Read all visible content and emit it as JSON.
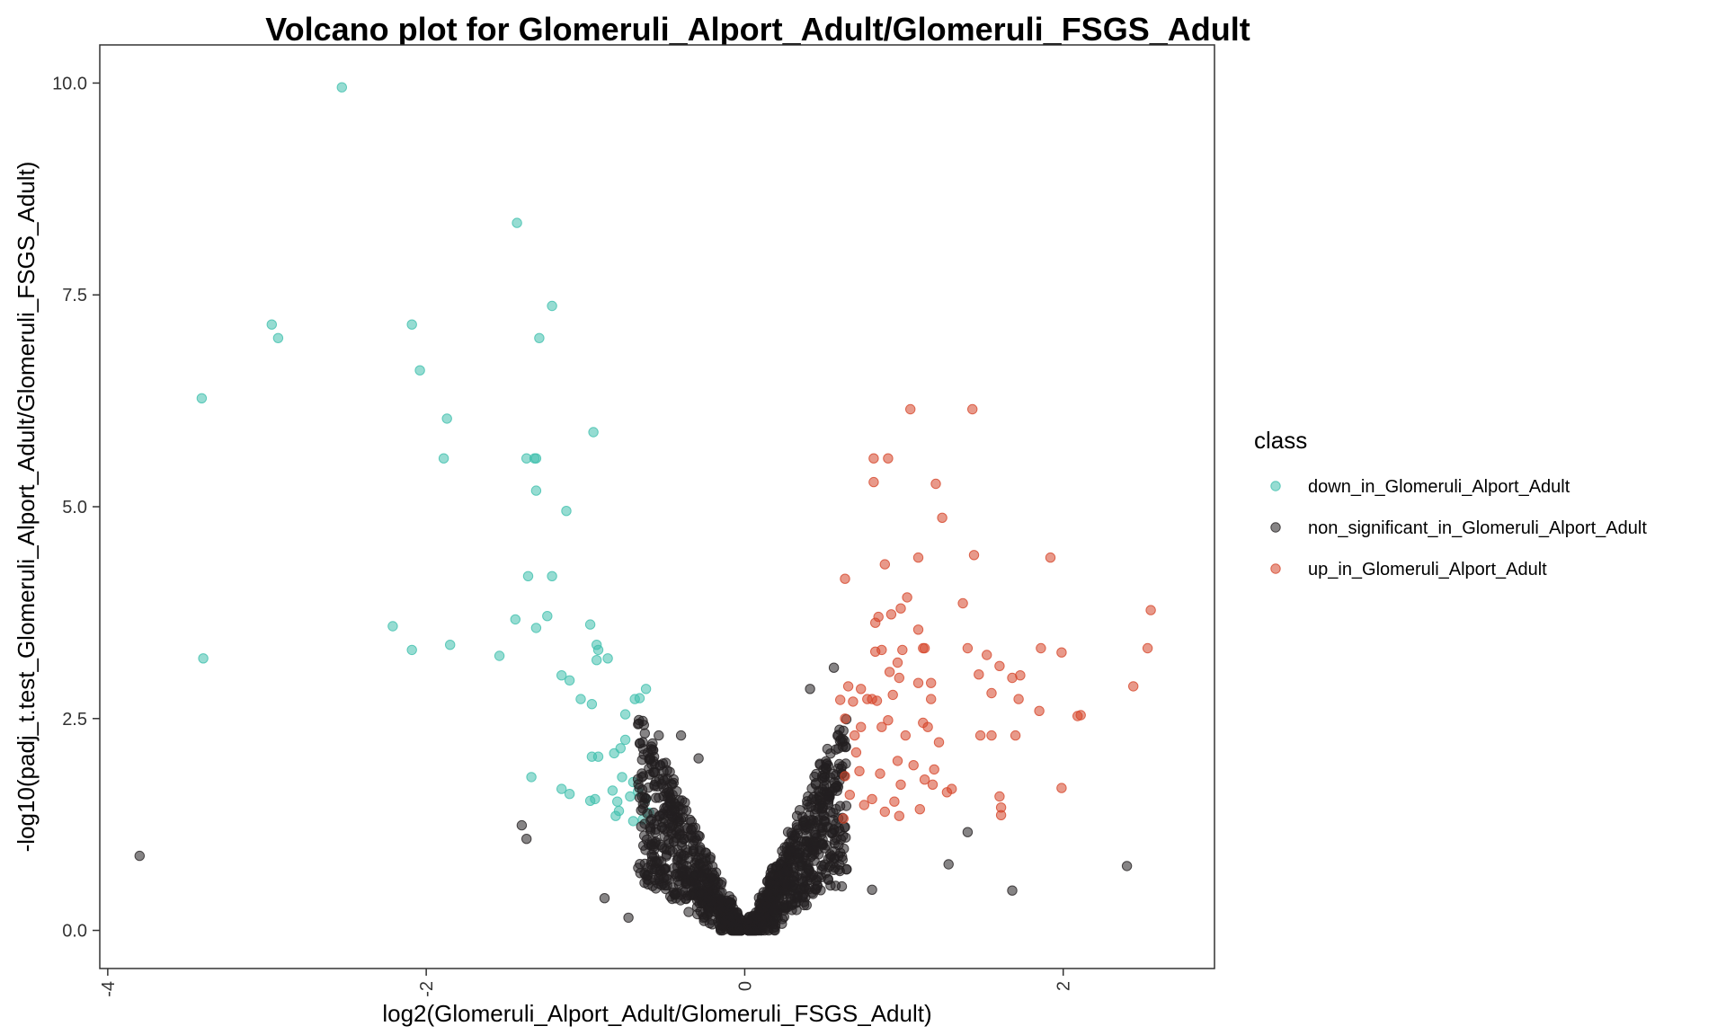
{
  "chart_data": {
    "type": "scatter",
    "title": "Volcano plot for Glomeruli_Alport_Adult/Glomeruli_FSGS_Adult",
    "xlabel": "log2(Glomeruli_Alport_Adult/Glomeruli_FSGS_Adult)",
    "ylabel": "-log10(padj_t.test_Glomeruli_Alport_Adult/Glomeruli_FSGS_Adult)",
    "xlim": [
      -4.05,
      2.95
    ],
    "ylim": [
      -0.45,
      10.45
    ],
    "x_ticks": [
      -4,
      -2,
      0,
      2
    ],
    "x_tick_labels": [
      "-4",
      "-2",
      "0",
      "2"
    ],
    "y_ticks": [
      0,
      2.5,
      5,
      7.5,
      10
    ],
    "y_tick_labels": [
      "0.0",
      "2.5",
      "5.0",
      "7.5",
      "10.0"
    ],
    "grid": false,
    "legend": {
      "title": "class",
      "position": "right",
      "entries": [
        {
          "label": "down_in_Glomeruli_Alport_Adult",
          "color": "#3fbfad"
        },
        {
          "label": "non_significant_in_Glomeruli_Alport_Adult",
          "color": "#231f20"
        },
        {
          "label": "up_in_Glomeruli_Alport_Adult",
          "color": "#d6462a"
        }
      ]
    },
    "series": [
      {
        "name": "down_in_Glomeruli_Alport_Adult",
        "color": "#3fbfad",
        "points": [
          [
            -2.53,
            9.95
          ],
          [
            -1.43,
            8.35
          ],
          [
            -1.21,
            7.37
          ],
          [
            -2.97,
            7.15
          ],
          [
            -2.93,
            6.99
          ],
          [
            -2.09,
            7.15
          ],
          [
            -1.29,
            6.99
          ],
          [
            -2.04,
            6.61
          ],
          [
            -3.41,
            6.28
          ],
          [
            -1.87,
            6.04
          ],
          [
            -0.95,
            5.88
          ],
          [
            -1.89,
            5.57
          ],
          [
            -1.37,
            5.57
          ],
          [
            -1.32,
            5.57
          ],
          [
            -1.31,
            5.57
          ],
          [
            -1.31,
            5.19
          ],
          [
            -1.12,
            4.95
          ],
          [
            -1.36,
            4.18
          ],
          [
            -1.21,
            4.18
          ],
          [
            -1.24,
            3.71
          ],
          [
            -1.44,
            3.67
          ],
          [
            -0.97,
            3.61
          ],
          [
            -2.21,
            3.59
          ],
          [
            -1.31,
            3.57
          ],
          [
            -1.85,
            3.37
          ],
          [
            -0.93,
            3.37
          ],
          [
            -0.92,
            3.31
          ],
          [
            -2.09,
            3.31
          ],
          [
            -1.54,
            3.24
          ],
          [
            -0.86,
            3.21
          ],
          [
            -0.93,
            3.19
          ],
          [
            -3.4,
            3.21
          ],
          [
            -1.15,
            3.01
          ],
          [
            -1.1,
            2.95
          ],
          [
            -0.62,
            2.85
          ],
          [
            -1.03,
            2.73
          ],
          [
            -0.96,
            2.67
          ],
          [
            -0.66,
            2.74
          ],
          [
            -0.69,
            2.73
          ],
          [
            -0.75,
            2.55
          ],
          [
            -0.75,
            2.25
          ],
          [
            -0.78,
            2.15
          ],
          [
            -0.82,
            2.09
          ],
          [
            -0.96,
            2.05
          ],
          [
            -0.92,
            2.05
          ],
          [
            -1.34,
            1.81
          ],
          [
            -0.77,
            1.81
          ],
          [
            -0.7,
            1.75
          ],
          [
            -1.15,
            1.67
          ],
          [
            -0.83,
            1.65
          ],
          [
            -0.67,
            1.64
          ],
          [
            -1.1,
            1.61
          ],
          [
            -0.72,
            1.58
          ],
          [
            -0.94,
            1.55
          ],
          [
            -0.97,
            1.53
          ],
          [
            -0.8,
            1.52
          ],
          [
            -0.62,
            1.55
          ],
          [
            -0.79,
            1.41
          ],
          [
            -0.6,
            1.39
          ],
          [
            -0.81,
            1.35
          ],
          [
            -0.7,
            1.29
          ],
          [
            -0.64,
            1.31
          ]
        ]
      },
      {
        "name": "non_significant_in_Glomeruli_Alport_Adult",
        "color": "#231f20",
        "points": []
      },
      {
        "name": "up_in_Glomeruli_Alport_Adult",
        "color": "#d6462a",
        "points": [
          [
            1.04,
            6.15
          ],
          [
            1.43,
            6.15
          ],
          [
            0.81,
            5.57
          ],
          [
            0.9,
            5.57
          ],
          [
            0.81,
            5.29
          ],
          [
            1.2,
            5.27
          ],
          [
            1.24,
            4.87
          ],
          [
            1.44,
            4.43
          ],
          [
            1.92,
            4.4
          ],
          [
            1.09,
            4.4
          ],
          [
            0.88,
            4.32
          ],
          [
            0.63,
            4.15
          ],
          [
            1.37,
            3.86
          ],
          [
            1.02,
            3.93
          ],
          [
            0.98,
            3.8
          ],
          [
            0.92,
            3.73
          ],
          [
            0.84,
            3.7
          ],
          [
            2.55,
            3.78
          ],
          [
            0.82,
            3.63
          ],
          [
            1.09,
            3.55
          ],
          [
            1.4,
            3.33
          ],
          [
            1.13,
            3.33
          ],
          [
            1.12,
            3.33
          ],
          [
            0.99,
            3.31
          ],
          [
            0.86,
            3.31
          ],
          [
            0.82,
            3.29
          ],
          [
            1.86,
            3.33
          ],
          [
            1.52,
            3.25
          ],
          [
            1.99,
            3.28
          ],
          [
            2.53,
            3.33
          ],
          [
            0.96,
            3.16
          ],
          [
            1.6,
            3.12
          ],
          [
            0.91,
            3.05
          ],
          [
            1.47,
            3.02
          ],
          [
            1.68,
            2.98
          ],
          [
            1.73,
            3.01
          ],
          [
            0.97,
            2.98
          ],
          [
            1.09,
            2.92
          ],
          [
            1.17,
            2.92
          ],
          [
            0.65,
            2.88
          ],
          [
            0.73,
            2.85
          ],
          [
            2.44,
            2.88
          ],
          [
            1.55,
            2.8
          ],
          [
            0.93,
            2.78
          ],
          [
            1.72,
            2.73
          ],
          [
            1.17,
            2.73
          ],
          [
            0.77,
            2.73
          ],
          [
            0.8,
            2.73
          ],
          [
            0.83,
            2.71
          ],
          [
            0.6,
            2.72
          ],
          [
            0.68,
            2.7
          ],
          [
            1.85,
            2.59
          ],
          [
            2.09,
            2.53
          ],
          [
            2.11,
            2.54
          ],
          [
            1.12,
            2.45
          ],
          [
            0.9,
            2.48
          ],
          [
            1.15,
            2.4
          ],
          [
            0.63,
            2.5
          ],
          [
            0.73,
            2.4
          ],
          [
            0.86,
            2.4
          ],
          [
            0.69,
            2.3
          ],
          [
            1.48,
            2.3
          ],
          [
            1.55,
            2.3
          ],
          [
            1.7,
            2.3
          ],
          [
            1.01,
            2.3
          ],
          [
            1.22,
            2.22
          ],
          [
            0.7,
            2.1
          ],
          [
            0.96,
            2.0
          ],
          [
            1.06,
            1.95
          ],
          [
            1.19,
            1.9
          ],
          [
            0.72,
            1.88
          ],
          [
            0.85,
            1.85
          ],
          [
            0.63,
            1.82
          ],
          [
            1.13,
            1.78
          ],
          [
            0.98,
            1.72
          ],
          [
            1.18,
            1.72
          ],
          [
            1.99,
            1.68
          ],
          [
            1.3,
            1.67
          ],
          [
            1.27,
            1.63
          ],
          [
            1.6,
            1.58
          ],
          [
            0.8,
            1.55
          ],
          [
            0.66,
            1.6
          ],
          [
            0.94,
            1.52
          ],
          [
            1.61,
            1.45
          ],
          [
            1.1,
            1.43
          ],
          [
            0.75,
            1.48
          ],
          [
            0.88,
            1.4
          ],
          [
            1.61,
            1.36
          ],
          [
            0.62,
            1.32
          ],
          [
            0.97,
            1.35
          ]
        ]
      }
    ]
  }
}
